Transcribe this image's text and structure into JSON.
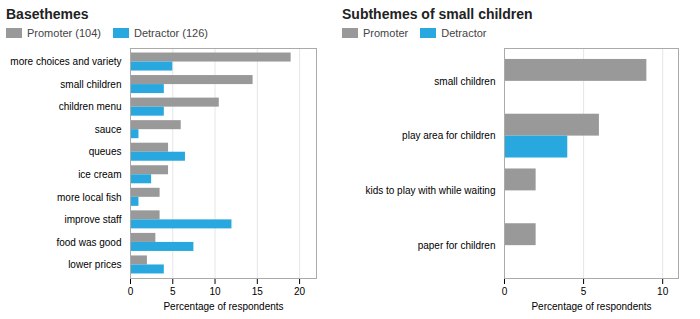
{
  "chart_data": [
    {
      "type": "bar",
      "orientation": "horizontal",
      "title": "Basethemes",
      "categories": [
        "more choices and variety",
        "small children",
        "children menu",
        "sauce",
        "queues",
        "ice cream",
        "more local fish",
        "improve staff",
        "food was good",
        "lower prices"
      ],
      "series": [
        {
          "name": "Promoter (104)",
          "color": "#999999",
          "values": [
            19,
            14.5,
            10.5,
            6,
            4.5,
            4.5,
            3.5,
            3.5,
            3,
            2
          ]
        },
        {
          "name": "Detractor (126)",
          "color": "#29a8e0",
          "values": [
            5,
            4,
            4,
            1,
            6.5,
            2.5,
            1,
            12,
            7.5,
            4
          ]
        }
      ],
      "xlim": [
        0,
        22
      ],
      "xticks": [
        0,
        5,
        10,
        15,
        20
      ],
      "xlabel": "Percentage of respondents",
      "grid": true,
      "legend": "upper left"
    },
    {
      "type": "bar",
      "orientation": "horizontal",
      "title": "Subthemes of small children",
      "categories": [
        "small children",
        "play area for children",
        "kids to play with while waiting",
        "paper for children"
      ],
      "series": [
        {
          "name": "Promoter",
          "color": "#999999",
          "values": [
            9,
            6,
            2,
            2
          ]
        },
        {
          "name": "Detractor",
          "color": "#29a8e0",
          "values": [
            0,
            4,
            0,
            0
          ]
        }
      ],
      "xlim": [
        0,
        11
      ],
      "xticks": [
        0,
        5,
        10
      ],
      "xlabel": "Percentage of respondents",
      "grid": true,
      "legend": "upper left"
    }
  ]
}
